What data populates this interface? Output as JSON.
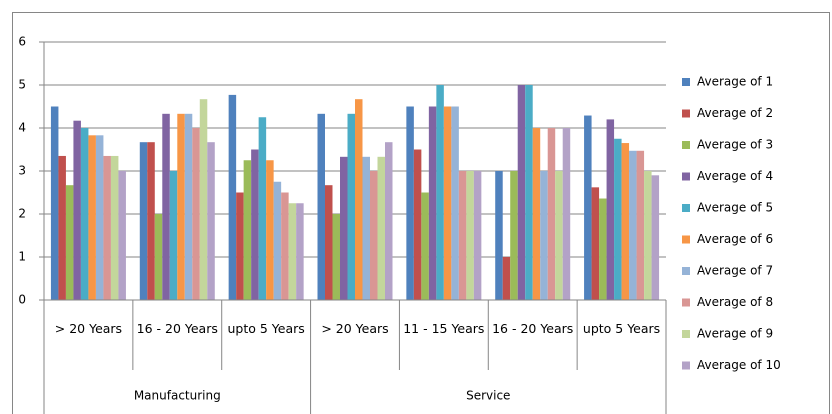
{
  "chart_data": {
    "type": "bar",
    "category_groups": [
      {
        "label": "Manufacturing",
        "categories": [
          "> 20 Years",
          "16 - 20 Years",
          "upto 5 Years"
        ]
      },
      {
        "label": "Service",
        "categories": [
          "> 20 Years",
          "11 - 15 Years",
          "16 - 20 Years",
          "upto 5 Years"
        ]
      }
    ],
    "series": [
      {
        "name": "Average of 1",
        "color": "#4f81bd",
        "values": [
          4.5,
          3.67,
          4.77,
          4.33,
          4.5,
          3.0,
          4.29
        ]
      },
      {
        "name": "Average of 2",
        "color": "#c0504d",
        "values": [
          3.35,
          3.67,
          2.5,
          2.67,
          3.5,
          1.0,
          2.62
        ]
      },
      {
        "name": "Average of 3",
        "color": "#9bbb59",
        "values": [
          2.67,
          2.0,
          3.25,
          2.0,
          2.5,
          3.0,
          2.36
        ]
      },
      {
        "name": "Average of 4",
        "color": "#8064a2",
        "values": [
          4.17,
          4.33,
          3.5,
          3.33,
          4.5,
          5.0,
          4.2
        ]
      },
      {
        "name": "Average of 5",
        "color": "#4bacc6",
        "values": [
          4.0,
          3.0,
          4.25,
          4.33,
          5.0,
          5.0,
          3.75
        ]
      },
      {
        "name": "Average of 6",
        "color": "#f79646",
        "values": [
          3.83,
          4.33,
          3.25,
          4.67,
          4.5,
          4.0,
          3.65
        ]
      },
      {
        "name": "Average of 7",
        "color": "#95b3d7",
        "values": [
          3.83,
          4.33,
          2.75,
          3.33,
          4.5,
          3.0,
          3.47
        ]
      },
      {
        "name": "Average of 8",
        "color": "#d99694",
        "values": [
          3.35,
          4.0,
          2.5,
          3.0,
          3.0,
          4.0,
          3.47
        ]
      },
      {
        "name": "Average of 9",
        "color": "#c3d69b",
        "values": [
          3.35,
          4.67,
          2.25,
          3.33,
          3.0,
          3.0,
          3.0
        ]
      },
      {
        "name": "Average of 10",
        "color": "#b3a2c7",
        "values": [
          3.0,
          3.67,
          2.25,
          3.67,
          3.0,
          4.0,
          2.9
        ]
      }
    ],
    "ylim": [
      0,
      6
    ],
    "yticks": [
      0,
      1,
      2,
      3,
      4,
      5,
      6
    ],
    "grid": true,
    "legend": "right"
  }
}
